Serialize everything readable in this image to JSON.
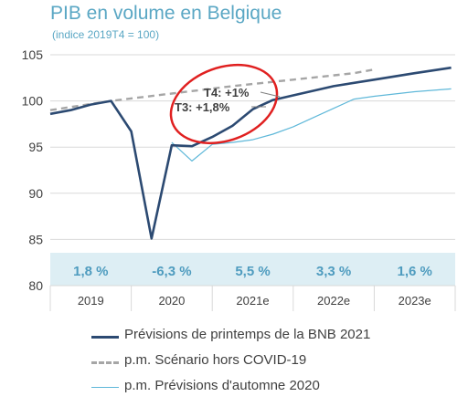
{
  "title": "PIB en volume en Belgique",
  "subtitle": "(indice 2019T4 = 100)",
  "colors": {
    "main": "#2c4a72",
    "dashed": "#a6a6a6",
    "autumn": "#5fb8d9",
    "band": "#ddeef4",
    "growth_text": "#4f9cbf",
    "ellipse": "#e02020",
    "title": "#5aa7c4"
  },
  "chart_data": {
    "type": "line",
    "ylim": [
      80,
      105
    ],
    "yticks": [
      "80",
      "85",
      "90",
      "95",
      "100",
      "105"
    ],
    "xlim": [
      2019.0,
      2024.0
    ],
    "x_categories": [
      "2019",
      "2020",
      "2021e",
      "2022e",
      "2023e"
    ],
    "growth_labels": [
      "1,8 %",
      "-6,3 %",
      "5,5 %",
      "3,3 %",
      "1,6 %"
    ],
    "series": [
      {
        "name": "Prévisions de printemps de la BNB 2021",
        "x": [
          2019.0,
          2019.25,
          2019.5,
          2019.75,
          2020.0,
          2020.25,
          2020.5,
          2020.75,
          2021.0,
          2021.25,
          2021.5,
          2021.75,
          2022.0,
          2022.5,
          2023.0,
          2023.5,
          2023.95
        ],
        "values": [
          98.6,
          99.0,
          99.6,
          100.0,
          96.7,
          85.1,
          95.2,
          95.1,
          96.1,
          97.3,
          99.1,
          100.1,
          100.6,
          101.6,
          102.3,
          103.0,
          103.6
        ]
      },
      {
        "name": "p.m. Scénario hors COVID-19",
        "x": [
          2019.0,
          2019.75,
          2020.5,
          2021.25,
          2022.0,
          2022.75,
          2023.0
        ],
        "values": [
          99.0,
          100.0,
          100.8,
          101.6,
          102.3,
          103.0,
          103.4
        ]
      },
      {
        "name": "p.m. Prévisions d'automne 2020",
        "x": [
          2020.5,
          2020.75,
          2021.0,
          2021.25,
          2021.5,
          2021.75,
          2022.0,
          2022.25,
          2022.5,
          2022.75,
          2023.0,
          2023.5,
          2023.95
        ],
        "values": [
          95.5,
          93.5,
          95.3,
          95.5,
          95.8,
          96.4,
          97.2,
          98.2,
          99.2,
          100.2,
          100.5,
          101.0,
          101.3
        ]
      }
    ],
    "annotations": [
      "T4: +1%",
      "T3: +1,8%"
    ],
    "legend_position": "bottom"
  }
}
